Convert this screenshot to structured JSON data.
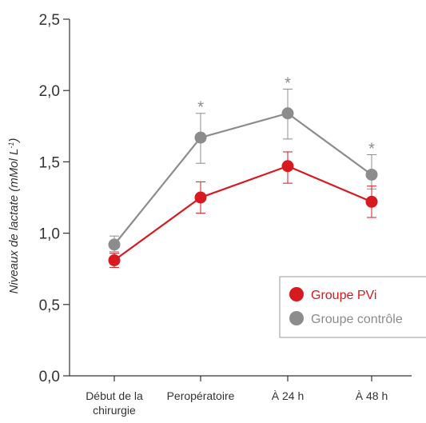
{
  "chart_data": {
    "type": "line",
    "ylabel": "Niveaux de lactate (mMol L",
    "ylabel_sup": "-1",
    "ylabel_close": ")",
    "categories": [
      "Début de la chirurgie",
      "Peropératoire",
      "À 24 h",
      "À 48 h"
    ],
    "category_lines": [
      [
        "Début de la",
        "chirurgie"
      ],
      [
        "Peropératoire"
      ],
      [
        "À 24 h"
      ],
      [
        "À 48 h"
      ]
    ],
    "ylim": [
      0,
      2.5
    ],
    "yticks": [
      {
        "value": 0.0,
        "label": "0,0"
      },
      {
        "value": 0.5,
        "label": "0,5"
      },
      {
        "value": 1.0,
        "label": "1,0"
      },
      {
        "value": 1.5,
        "label": "1,5"
      },
      {
        "value": 2.0,
        "label": "2,0"
      },
      {
        "value": 2.5,
        "label": "2,5"
      }
    ],
    "series": [
      {
        "name": "Groupe contrôle",
        "color": "#8c8c8c",
        "values": [
          0.92,
          1.67,
          1.84,
          1.41
        ],
        "error_low": [
          0.87,
          1.49,
          1.66,
          1.31
        ],
        "error_high": [
          0.98,
          1.84,
          2.01,
          1.55
        ]
      },
      {
        "name": "Groupe PVi",
        "color": "#d71920",
        "values": [
          0.81,
          1.25,
          1.47,
          1.22
        ],
        "error_low": [
          0.76,
          1.14,
          1.35,
          1.11
        ],
        "error_high": [
          0.86,
          1.36,
          1.57,
          1.33
        ]
      }
    ],
    "significance": [
      {
        "category_index": 1,
        "symbol": "*"
      },
      {
        "category_index": 2,
        "symbol": "*"
      },
      {
        "category_index": 3,
        "symbol": "*"
      }
    ],
    "legend": {
      "placement": "bottom-right",
      "items": [
        {
          "label": "Groupe PVi",
          "color": "#d71920"
        },
        {
          "label": "Groupe contrôle",
          "color": "#8c8c8c"
        }
      ]
    },
    "grid": false,
    "axis_color": "#333333"
  }
}
